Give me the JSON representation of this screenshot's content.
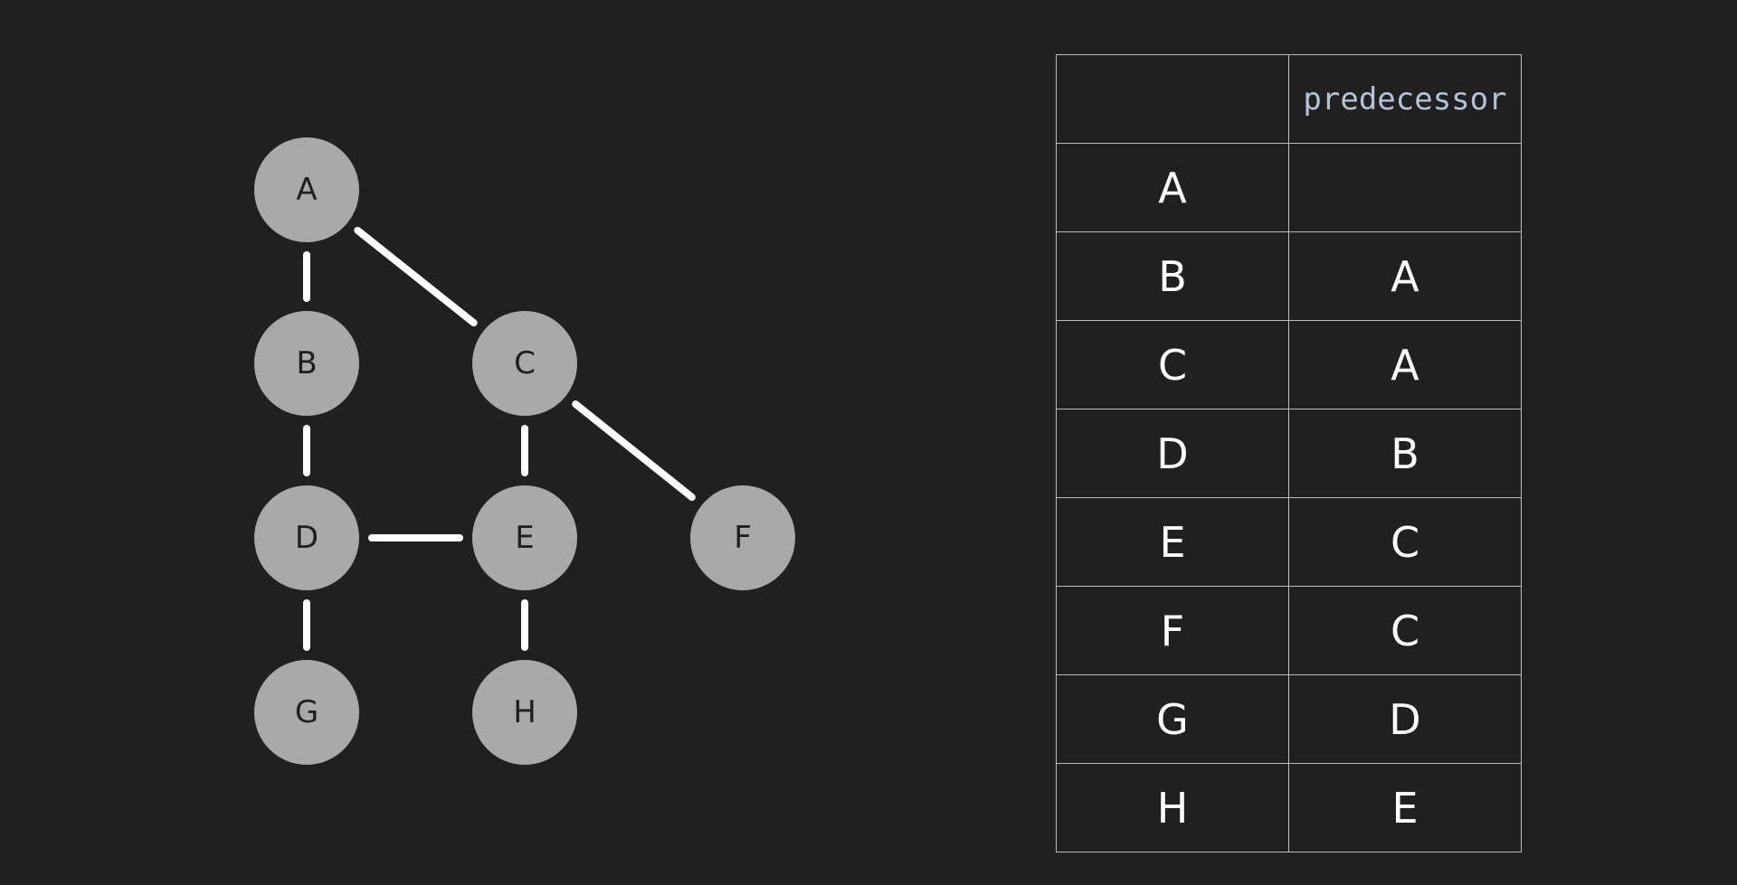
{
  "graph": {
    "nodes": [
      {
        "id": "A",
        "label": "A"
      },
      {
        "id": "B",
        "label": "B"
      },
      {
        "id": "C",
        "label": "C"
      },
      {
        "id": "D",
        "label": "D"
      },
      {
        "id": "E",
        "label": "E"
      },
      {
        "id": "F",
        "label": "F"
      },
      {
        "id": "G",
        "label": "G"
      },
      {
        "id": "H",
        "label": "H"
      }
    ],
    "edges": [
      [
        "A",
        "B"
      ],
      [
        "A",
        "C"
      ],
      [
        "B",
        "D"
      ],
      [
        "C",
        "E"
      ],
      [
        "C",
        "F"
      ],
      [
        "D",
        "E"
      ],
      [
        "D",
        "G"
      ],
      [
        "E",
        "H"
      ]
    ]
  },
  "table": {
    "header": [
      "",
      "predecessor"
    ],
    "rows": [
      [
        "A",
        ""
      ],
      [
        "B",
        "A"
      ],
      [
        "C",
        "A"
      ],
      [
        "D",
        "B"
      ],
      [
        "E",
        "C"
      ],
      [
        "F",
        "C"
      ],
      [
        "G",
        "D"
      ],
      [
        "H",
        "E"
      ]
    ]
  }
}
